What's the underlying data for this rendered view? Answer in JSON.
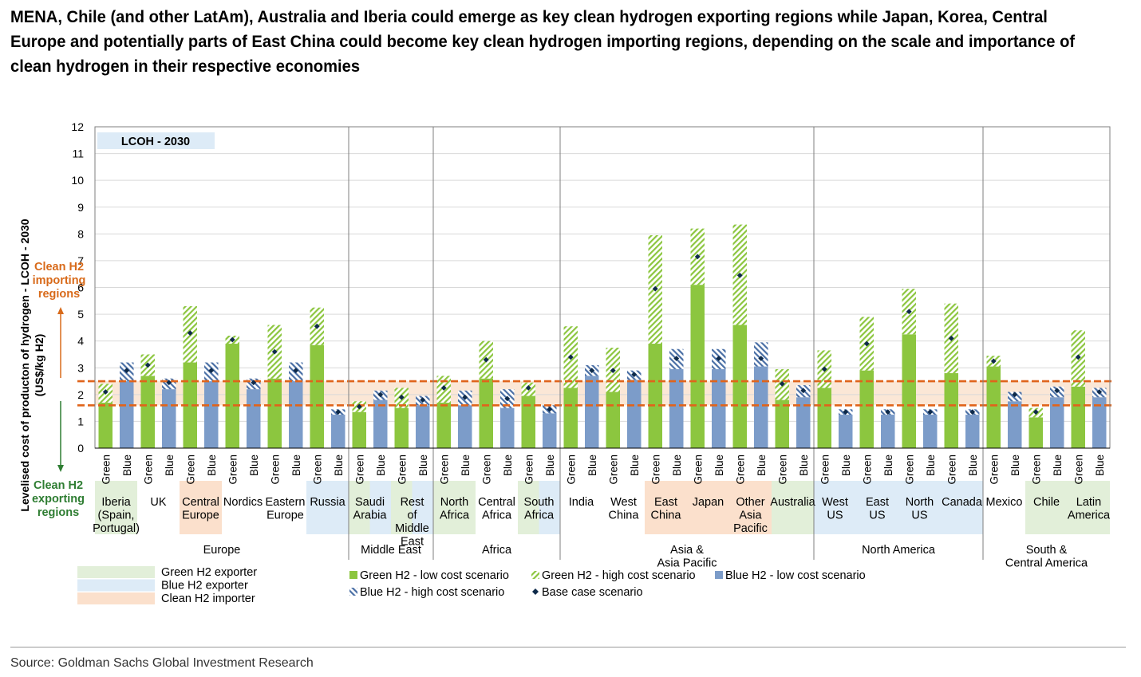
{
  "title": "MENA, Chile (and other LatAm), Australia and Iberia could emerge as key clean hydrogen exporting regions while Japan, Korea, Central Europe and potentially parts of East China could become key clean hydrogen importing regions, depending on the scale and importance of clean hydrogen in their respective economies",
  "source": "Source: Goldman Sachs Global Investment Research",
  "colors": {
    "green": "#8cc63f",
    "green_hatch": "#8cc63f",
    "blue": "#7c9cc9",
    "blue_hatch": "#4a6fa5",
    "base_marker": "#0e2a4a",
    "band_line": "#e0641b",
    "band_fill": "#fbe7d6",
    "exporter_green_bg": "#e2efd9",
    "exporter_blue_bg": "#ddebf7",
    "importer_bg": "#fbe0cc",
    "import_label": "#d86a1a",
    "export_label": "#2e7d32"
  },
  "chart_data": {
    "type": "bar",
    "title": "LCOH - 2030",
    "ylabel": "Levelised cost of producton of hydrogen - LCOH - 2030 (US$/kg H2)",
    "ylim": [
      0,
      12
    ],
    "yticks": [
      0,
      1,
      2,
      3,
      4,
      5,
      6,
      7,
      8,
      9,
      10,
      11,
      12
    ],
    "bar_labels": [
      "Green",
      "Blue"
    ],
    "threshold_band": [
      1.6,
      2.5
    ],
    "import_label": "Clean H2 importing regions",
    "export_label": "Clean H2 exporting regions",
    "groups": [
      {
        "name": "Europe",
        "countries": [
          {
            "name": "Iberia (Spain, Portugal)",
            "role": "green_exporter",
            "green": {
              "low": 1.7,
              "high": 2.4,
              "base": 2.1
            },
            "blue": {
              "low": 2.5,
              "high": 3.2,
              "base": 2.9
            }
          },
          {
            "name": "UK",
            "role": "",
            "green": {
              "low": 2.7,
              "high": 3.5,
              "base": 3.1
            },
            "blue": {
              "low": 2.2,
              "high": 2.6,
              "base": 2.45
            }
          },
          {
            "name": "Central Europe",
            "role": "importer",
            "green": {
              "low": 3.2,
              "high": 5.3,
              "base": 4.3
            },
            "blue": {
              "low": 2.5,
              "high": 3.2,
              "base": 2.9
            }
          },
          {
            "name": "Nordics",
            "role": "",
            "green": {
              "low": 3.9,
              "high": 4.2,
              "base": 4.05
            },
            "blue": {
              "low": 2.2,
              "high": 2.6,
              "base": 2.45
            }
          },
          {
            "name": "Eastern Europe",
            "role": "",
            "green": {
              "low": 2.6,
              "high": 4.6,
              "base": 3.6
            },
            "blue": {
              "low": 2.5,
              "high": 3.2,
              "base": 2.9
            }
          },
          {
            "name": "Russia",
            "role": "blue_exporter",
            "green": {
              "low": 3.85,
              "high": 5.25,
              "base": 4.55
            },
            "blue": {
              "low": 1.25,
              "high": 1.45,
              "base": 1.35
            }
          }
        ]
      },
      {
        "name": "Middle East",
        "countries": [
          {
            "name": "Saudi Arabia",
            "role": "both_exporter",
            "green": {
              "low": 1.35,
              "high": 1.75,
              "base": 1.55
            },
            "blue": {
              "low": 1.8,
              "high": 2.15,
              "base": 2.0
            }
          },
          {
            "name": "Rest of Middle East",
            "role": "both_exporter",
            "green": {
              "low": 1.5,
              "high": 2.25,
              "base": 1.9
            },
            "blue": {
              "low": 1.6,
              "high": 1.95,
              "base": 1.8
            }
          }
        ]
      },
      {
        "name": "Africa",
        "countries": [
          {
            "name": "North Africa",
            "role": "green_exporter",
            "green": {
              "low": 1.7,
              "high": 2.7,
              "base": 2.25
            },
            "blue": {
              "low": 1.6,
              "high": 2.15,
              "base": 1.9
            }
          },
          {
            "name": "Central Africa",
            "role": "",
            "green": {
              "low": 2.6,
              "high": 4.0,
              "base": 3.3
            },
            "blue": {
              "low": 1.5,
              "high": 2.2,
              "base": 1.85
            }
          },
          {
            "name": "South Africa",
            "role": "both_exporter",
            "green": {
              "low": 1.95,
              "high": 2.45,
              "base": 2.25
            },
            "blue": {
              "low": 1.3,
              "high": 1.6,
              "base": 1.45
            }
          }
        ]
      },
      {
        "name": "Asia & Asia Pacific",
        "countries": [
          {
            "name": "India",
            "role": "",
            "green": {
              "low": 2.25,
              "high": 4.55,
              "base": 3.4
            },
            "blue": {
              "low": 2.7,
              "high": 3.1,
              "base": 2.9
            }
          },
          {
            "name": "West China",
            "role": "",
            "green": {
              "low": 2.1,
              "high": 3.75,
              "base": 2.9
            },
            "blue": {
              "low": 2.55,
              "high": 2.9,
              "base": 2.75
            }
          },
          {
            "name": "East China",
            "role": "importer",
            "green": {
              "low": 3.9,
              "high": 7.95,
              "base": 5.95
            },
            "blue": {
              "low": 2.95,
              "high": 3.7,
              "base": 3.35
            }
          },
          {
            "name": "Japan",
            "role": "importer",
            "green": {
              "low": 6.1,
              "high": 8.2,
              "base": 7.15
            },
            "blue": {
              "low": 2.95,
              "high": 3.7,
              "base": 3.35
            }
          },
          {
            "name": "Other Asia Pacific",
            "role": "importer",
            "green": {
              "low": 4.6,
              "high": 8.35,
              "base": 6.45
            },
            "blue": {
              "low": 3.05,
              "high": 3.95,
              "base": 3.35
            }
          },
          {
            "name": "Australia",
            "role": "green_exporter",
            "green": {
              "low": 1.8,
              "high": 2.95,
              "base": 2.4
            },
            "blue": {
              "low": 1.9,
              "high": 2.35,
              "base": 2.15
            }
          }
        ]
      },
      {
        "name": "North America",
        "countries": [
          {
            "name": "West US",
            "role": "blue_exporter",
            "green": {
              "low": 2.25,
              "high": 3.65,
              "base": 2.95
            },
            "blue": {
              "low": 1.25,
              "high": 1.45,
              "base": 1.35
            }
          },
          {
            "name": "East US",
            "role": "blue_exporter",
            "green": {
              "low": 2.9,
              "high": 4.9,
              "base": 3.9
            },
            "blue": {
              "low": 1.25,
              "high": 1.45,
              "base": 1.35
            }
          },
          {
            "name": "North US",
            "role": "blue_exporter",
            "green": {
              "low": 4.25,
              "high": 5.95,
              "base": 5.1
            },
            "blue": {
              "low": 1.25,
              "high": 1.45,
              "base": 1.35
            }
          },
          {
            "name": "Canada",
            "role": "blue_exporter",
            "green": {
              "low": 2.8,
              "high": 5.4,
              "base": 4.1
            },
            "blue": {
              "low": 1.25,
              "high": 1.45,
              "base": 1.35
            }
          }
        ]
      },
      {
        "name": "South & Central America",
        "countries": [
          {
            "name": "Mexico",
            "role": "",
            "green": {
              "low": 3.05,
              "high": 3.45,
              "base": 3.25
            },
            "blue": {
              "low": 1.75,
              "high": 2.1,
              "base": 2.0
            }
          },
          {
            "name": "Chile",
            "role": "green_exporter",
            "green": {
              "low": 1.15,
              "high": 1.5,
              "base": 1.35
            },
            "blue": {
              "low": 1.9,
              "high": 2.3,
              "base": 2.15
            }
          },
          {
            "name": "Latin America",
            "role": "green_exporter",
            "green": {
              "low": 2.3,
              "high": 4.4,
              "base": 3.4
            },
            "blue": {
              "low": 1.9,
              "high": 2.25,
              "base": 2.1
            }
          }
        ]
      }
    ],
    "legend": {
      "roles": [
        {
          "key": "green_exporter",
          "label": "Green H2 exporter"
        },
        {
          "key": "blue_exporter",
          "label": "Blue H2 exporter"
        },
        {
          "key": "importer",
          "label": "Clean H2 importer"
        }
      ],
      "series": [
        {
          "key": "green_low",
          "label": "Green H2 - low cost scenario"
        },
        {
          "key": "green_high",
          "label": "Green H2 - high cost scenario"
        },
        {
          "key": "blue_low",
          "label": "Blue H2 - low cost scenario"
        },
        {
          "key": "blue_high",
          "label": "Blue H2 - high cost scenario"
        },
        {
          "key": "base",
          "label": "Base case scenario"
        }
      ]
    }
  }
}
